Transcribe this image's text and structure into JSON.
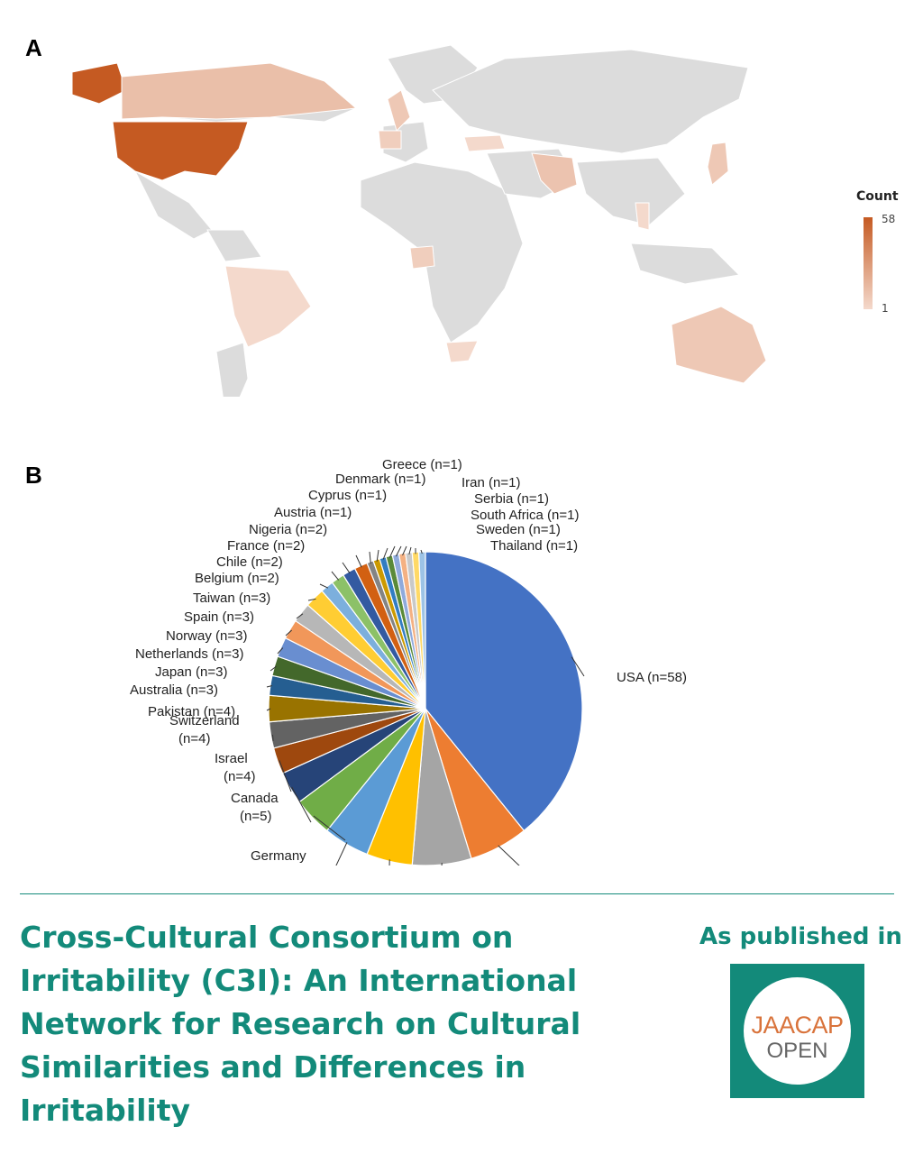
{
  "panel_a_label": "A",
  "panel_b_label": "B",
  "colors": {
    "land_default": "#dcdcdc",
    "scale_low": "#f4d9cc",
    "scale_high": "#c55a22",
    "teal": "#138a7a",
    "logo_orange": "#d9733b",
    "pie_colors": [
      "#4472c4",
      "#ed7d31",
      "#a5a5a5",
      "#ffc000",
      "#5b9bd5",
      "#70ad47",
      "#264478",
      "#9e480e",
      "#636363",
      "#997300",
      "#255e91",
      "#43682b",
      "#698ed0",
      "#f1975a",
      "#b7b7b7",
      "#ffcd33",
      "#7cafdd",
      "#8cc168",
      "#335aa1",
      "#d26012",
      "#848484",
      "#cc9a00",
      "#327dc2",
      "#5a8a39",
      "#8faadc",
      "#f4b183",
      "#c9c9c9",
      "#ffd966",
      "#9dc3e6",
      "#a9d18e",
      "#2f5597",
      "#c55a11"
    ]
  },
  "map": {
    "legend_title": "Count",
    "legend_max": "58",
    "legend_min": "1",
    "countries": [
      {
        "name": "USA",
        "count": 58
      },
      {
        "name": "Canada",
        "count": 5
      },
      {
        "name": "Brazil",
        "count": 1
      },
      {
        "name": "Australia",
        "count": 3
      },
      {
        "name": "South Africa",
        "count": 1
      },
      {
        "name": "Nigeria",
        "count": 2
      },
      {
        "name": "Turkey",
        "count": 1
      },
      {
        "name": "Pakistan",
        "count": 4
      },
      {
        "name": "Japan",
        "count": 3
      },
      {
        "name": "Thailand",
        "count": 1
      }
    ]
  },
  "chart_data": {
    "type": "pie",
    "slices": [
      {
        "label": "USA (n=58)",
        "value": 58
      },
      {
        "label": "",
        "value": 9
      },
      {
        "label": "",
        "value": 9
      },
      {
        "label": "",
        "value": 7
      },
      {
        "label": "",
        "value": 7
      },
      {
        "label": "Germany",
        "value": 6
      },
      {
        "label": "Canada\n(n=5)",
        "value": 5
      },
      {
        "label": "Israel\n(n=4)",
        "value": 4
      },
      {
        "label": "Switzerland\n(n=4)",
        "value": 4
      },
      {
        "label": "Pakistan (n=4)",
        "value": 4
      },
      {
        "label": "Australia (n=3)",
        "value": 3
      },
      {
        "label": "Japan (n=3)",
        "value": 3
      },
      {
        "label": "Netherlands (n=3)",
        "value": 3
      },
      {
        "label": "Norway (n=3)",
        "value": 3
      },
      {
        "label": "Spain (n=3)",
        "value": 3
      },
      {
        "label": "Taiwan (n=3)",
        "value": 3
      },
      {
        "label": "Belgium (n=2)",
        "value": 2
      },
      {
        "label": "Chile (n=2)",
        "value": 2
      },
      {
        "label": "France (n=2)",
        "value": 2
      },
      {
        "label": "Nigeria (n=2)",
        "value": 2
      },
      {
        "label": "Austria (n=1)",
        "value": 1
      },
      {
        "label": "Cyprus (n=1)",
        "value": 1
      },
      {
        "label": "Denmark (n=1)",
        "value": 1
      },
      {
        "label": "Greece (n=1)",
        "value": 1
      },
      {
        "label": "Iran (n=1)",
        "value": 1
      },
      {
        "label": "Serbia (n=1)",
        "value": 1
      },
      {
        "label": "South Africa (n=1)",
        "value": 1
      },
      {
        "label": "Sweden (n=1)",
        "value": 1
      },
      {
        "label": "Thailand (n=1)",
        "value": 1
      }
    ]
  },
  "footer": {
    "title": "Cross-Cultural Consortium on Irritability (C3I): An International Network for Research on Cultural Similarities and Differences in Irritability",
    "published_in": "As published in",
    "logo_line1": "JAACAP",
    "logo_line2": "OPEN"
  }
}
